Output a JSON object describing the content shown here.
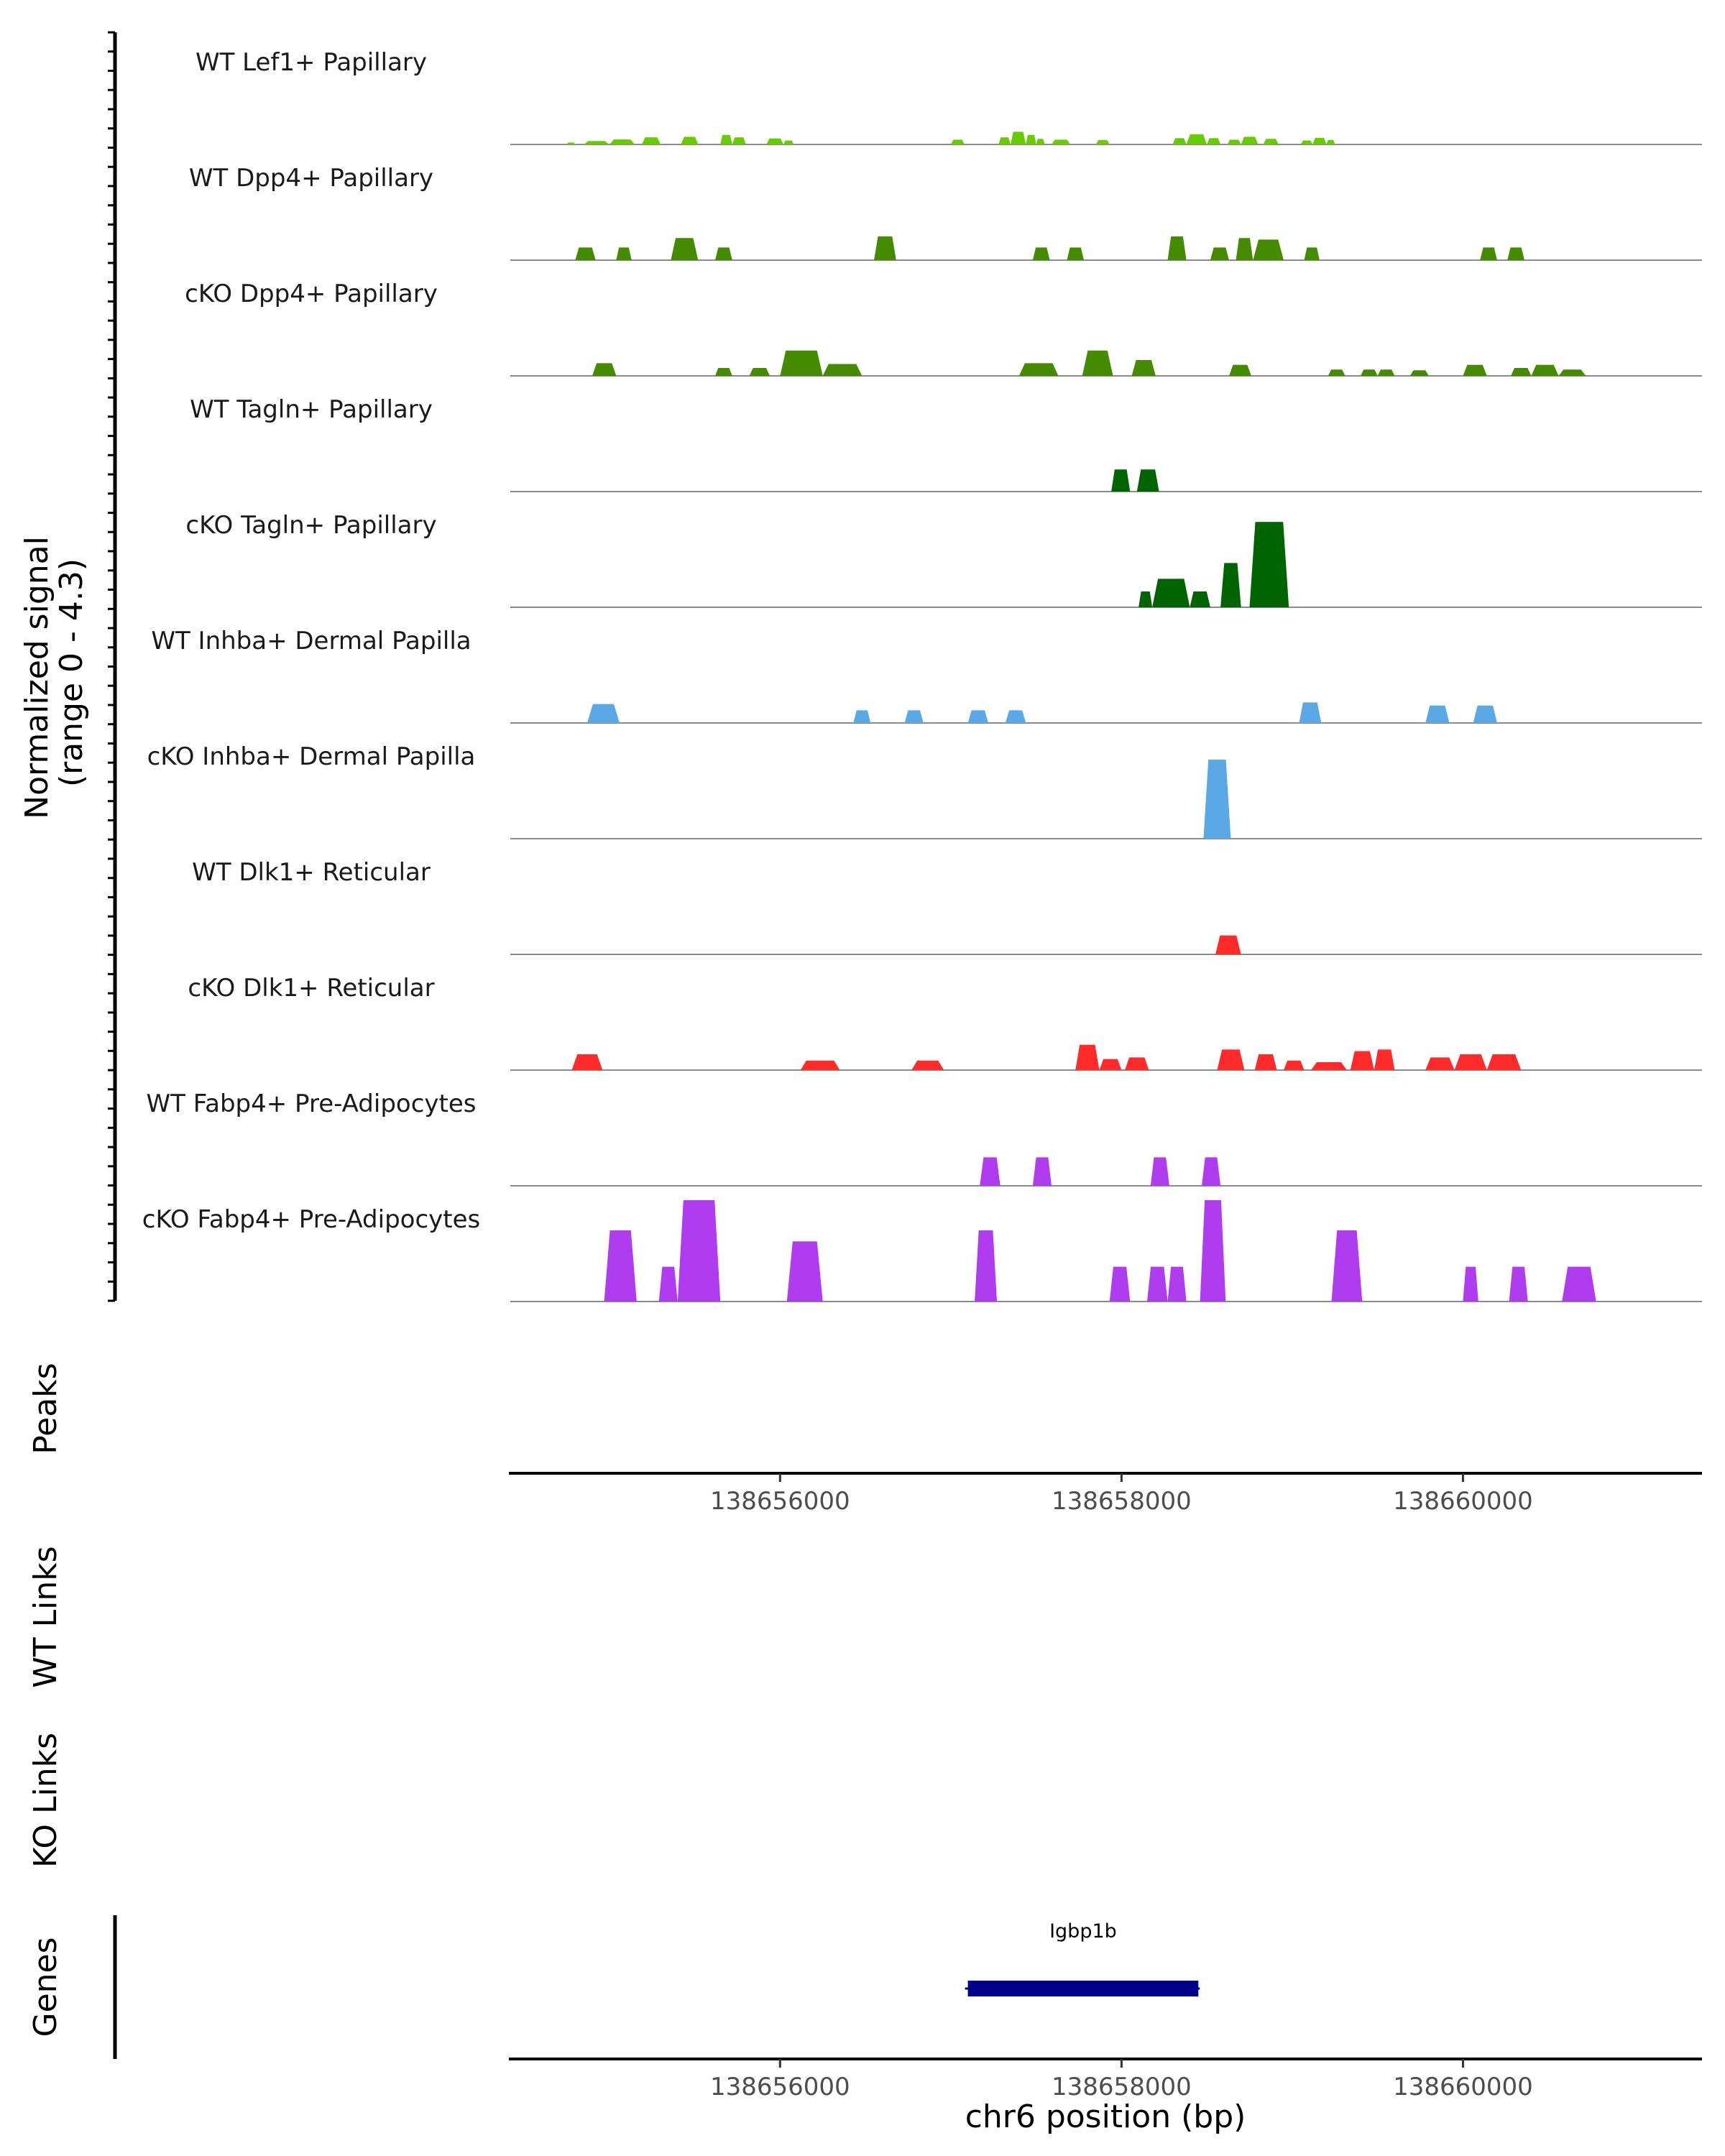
{
  "chart_data": {
    "type": "area",
    "title": "",
    "xlabel": "chr6 position (bp)",
    "ylabel": "Normalized signal\n(range 0 - 4.3)",
    "ylabel_lines": [
      "Normalized signal",
      "(range 0 - 4.3)"
    ],
    "ylim": [
      0,
      4.3
    ],
    "xlim": [
      138654420,
      138661400
    ],
    "x_ticks": [
      138656000,
      138658000,
      138660000
    ],
    "x_tick_labels": [
      "138656000",
      "138658000",
      "138660000"
    ],
    "tracks": [
      {
        "name": "WT Lef1+ Papillary",
        "color": "#66CC00",
        "peaks": [
          [
            138654750,
            138654800,
            0.12
          ],
          [
            138654850,
            138655000,
            0.22
          ],
          [
            138655000,
            138655150,
            0.32
          ],
          [
            138655190,
            138655300,
            0.45
          ],
          [
            138655420,
            138655520,
            0.48
          ],
          [
            138655650,
            138655720,
            0.6
          ],
          [
            138655720,
            138655800,
            0.45
          ],
          [
            138655920,
            138656020,
            0.38
          ],
          [
            138656020,
            138656080,
            0.25
          ],
          [
            138657000,
            138657080,
            0.3
          ],
          [
            138657280,
            138657350,
            0.45
          ],
          [
            138657350,
            138657440,
            0.8
          ],
          [
            138657440,
            138657500,
            0.6
          ],
          [
            138657500,
            138657550,
            0.35
          ],
          [
            138657590,
            138657700,
            0.3
          ],
          [
            138657850,
            138657930,
            0.28
          ],
          [
            138658300,
            138658380,
            0.4
          ],
          [
            138658380,
            138658500,
            0.65
          ],
          [
            138658500,
            138658580,
            0.4
          ],
          [
            138658620,
            138658700,
            0.3
          ],
          [
            138658700,
            138658800,
            0.48
          ],
          [
            138658830,
            138658920,
            0.35
          ],
          [
            138659050,
            138659120,
            0.25
          ],
          [
            138659120,
            138659200,
            0.42
          ],
          [
            138659200,
            138659250,
            0.28
          ]
        ]
      },
      {
        "name": "WT Dpp4+ Papillary",
        "color": "#458B00",
        "peaks": [
          [
            138654800,
            138654920,
            0.8
          ],
          [
            138655040,
            138655130,
            0.8
          ],
          [
            138655360,
            138655520,
            1.4
          ],
          [
            138655620,
            138655720,
            0.8
          ],
          [
            138656550,
            138656680,
            1.5
          ],
          [
            138657480,
            138657580,
            0.8
          ],
          [
            138657680,
            138657780,
            0.8
          ],
          [
            138658270,
            138658380,
            1.5
          ],
          [
            138658520,
            138658630,
            0.8
          ],
          [
            138658670,
            138658770,
            1.4
          ],
          [
            138658770,
            138658950,
            1.3
          ],
          [
            138659070,
            138659160,
            0.8
          ],
          [
            138660100,
            138660200,
            0.8
          ],
          [
            138660260,
            138660360,
            0.8
          ]
        ]
      },
      {
        "name": "cKO Dpp4+ Papillary",
        "color": "#458B00",
        "peaks": [
          [
            138654900,
            138655040,
            0.8
          ],
          [
            138655620,
            138655720,
            0.5
          ],
          [
            138655820,
            138655940,
            0.5
          ],
          [
            138656000,
            138656250,
            1.6
          ],
          [
            138656250,
            138656480,
            0.75
          ],
          [
            138657400,
            138657630,
            0.8
          ],
          [
            138657770,
            138657950,
            1.6
          ],
          [
            138658060,
            138658200,
            1.0
          ],
          [
            138658630,
            138658760,
            0.7
          ],
          [
            138659210,
            138659310,
            0.4
          ],
          [
            138659400,
            138659500,
            0.4
          ],
          [
            138659500,
            138659600,
            0.4
          ],
          [
            138659690,
            138659800,
            0.35
          ],
          [
            138660000,
            138660140,
            0.7
          ],
          [
            138660280,
            138660400,
            0.5
          ],
          [
            138660400,
            138660560,
            0.7
          ],
          [
            138660560,
            138660720,
            0.4
          ]
        ]
      },
      {
        "name": "WT Tagln+ Papillary",
        "color": "#006400",
        "peaks": [
          [
            138657940,
            138658050,
            1.4
          ],
          [
            138658090,
            138658220,
            1.4
          ]
        ]
      },
      {
        "name": "cKO Tagln+ Papillary",
        "color": "#006400",
        "peaks": [
          [
            138658100,
            138658180,
            1.0
          ],
          [
            138658180,
            138658400,
            1.8
          ],
          [
            138658400,
            138658520,
            1.0
          ],
          [
            138658580,
            138658700,
            2.8
          ],
          [
            138658750,
            138658980,
            5.4
          ]
        ]
      },
      {
        "name": "WT Inhba+ Dermal Papilla",
        "color": "#5AA9E6",
        "peaks": [
          [
            138654870,
            138655060,
            1.2
          ],
          [
            138656430,
            138656530,
            0.8
          ],
          [
            138656730,
            138656840,
            0.8
          ],
          [
            138657100,
            138657220,
            0.8
          ],
          [
            138657320,
            138657440,
            0.8
          ],
          [
            138659040,
            138659170,
            1.3
          ],
          [
            138659780,
            138659920,
            1.1
          ],
          [
            138660060,
            138660200,
            1.1
          ]
        ]
      },
      {
        "name": "cKO Inhba+ Dermal Papilla",
        "color": "#5AA9E6",
        "peaks": [
          [
            138658480,
            138658640,
            5.0
          ]
        ]
      },
      {
        "name": "WT Dlk1+ Reticular",
        "color": "#FF2A2A",
        "peaks": [
          [
            138658550,
            138658700,
            1.2
          ]
        ]
      },
      {
        "name": "cKO Dlk1+ Reticular",
        "color": "#FF2A2A",
        "peaks": [
          [
            138654780,
            138654960,
            1.0
          ],
          [
            138656120,
            138656350,
            0.6
          ],
          [
            138656770,
            138656960,
            0.6
          ],
          [
            138657730,
            138657870,
            1.6
          ],
          [
            138657870,
            138658000,
            0.7
          ],
          [
            138658020,
            138658160,
            0.8
          ],
          [
            138658560,
            138658720,
            1.3
          ],
          [
            138658780,
            138658910,
            1.0
          ],
          [
            138658950,
            138659070,
            0.6
          ],
          [
            138659110,
            138659320,
            0.5
          ],
          [
            138659340,
            138659480,
            1.2
          ],
          [
            138659480,
            138659600,
            1.3
          ],
          [
            138659780,
            138659950,
            0.8
          ],
          [
            138659950,
            138660140,
            1.0
          ],
          [
            138660140,
            138660340,
            1.0
          ]
        ]
      },
      {
        "name": "WT Fabp4+ Pre-Adipocytes",
        "color": "#B03CF0",
        "peaks": [
          [
            138657170,
            138657290,
            1.8
          ],
          [
            138657480,
            138657590,
            1.8
          ],
          [
            138658170,
            138658280,
            1.8
          ],
          [
            138658470,
            138658580,
            1.8
          ]
        ]
      },
      {
        "name": "cKO Fabp4+ Pre-Adipocytes",
        "color": "#B03CF0",
        "peaks": [
          [
            138654970,
            138655160,
            4.5
          ],
          [
            138655290,
            138655400,
            2.2
          ],
          [
            138655400,
            138655650,
            6.8
          ],
          [
            138656040,
            138656250,
            3.8
          ],
          [
            138657140,
            138657270,
            4.5
          ],
          [
            138657930,
            138658050,
            2.2
          ],
          [
            138658150,
            138658270,
            2.2
          ],
          [
            138658270,
            138658380,
            2.2
          ],
          [
            138658460,
            138658610,
            6.8
          ],
          [
            138659230,
            138659410,
            4.5
          ],
          [
            138660000,
            138660090,
            2.2
          ],
          [
            138660270,
            138660380,
            2.2
          ],
          [
            138660580,
            138660780,
            2.2
          ]
        ]
      }
    ],
    "panels": [
      "Peaks",
      "WT Links",
      "KO Links",
      "Genes"
    ],
    "genes": [
      {
        "name": "Igbp1b",
        "start": 138657100,
        "end": 138658450,
        "color": "#00008B"
      }
    ]
  }
}
